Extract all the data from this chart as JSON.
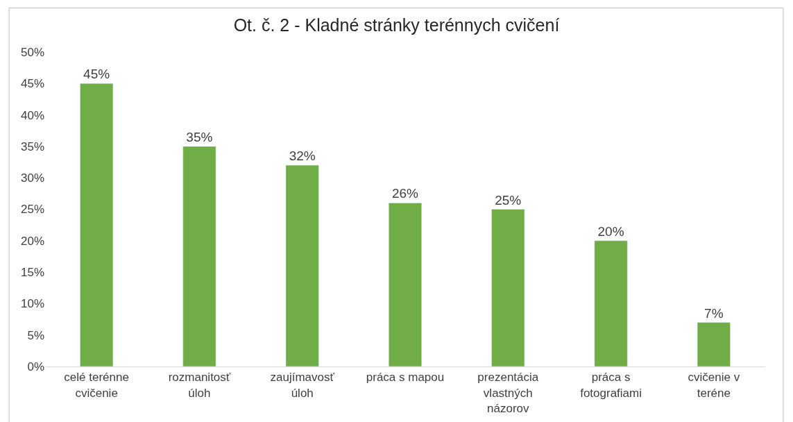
{
  "chart_data": {
    "type": "bar",
    "title": "Ot. č. 2 - Kladné stránky terénnych cvičení",
    "categories": [
      "celé terénne cvičenie",
      "rozmanitosť úloh",
      "zaujímavosť úloh",
      "práca s mapou",
      "prezentácia vlastných názorov",
      "práca s fotografiami",
      "cvičenie v teréne"
    ],
    "values": [
      45,
      35,
      32,
      26,
      25,
      20,
      7
    ],
    "value_labels": [
      "45%",
      "35%",
      "32%",
      "26%",
      "25%",
      "20%",
      "7%"
    ],
    "color": "#70ad47",
    "ylim": [
      0,
      50
    ],
    "yticks": [
      {
        "value": 0,
        "label": "0%"
      },
      {
        "value": 5,
        "label": "5%"
      },
      {
        "value": 10,
        "label": "10%"
      },
      {
        "value": 15,
        "label": "15%"
      },
      {
        "value": 20,
        "label": "20%"
      },
      {
        "value": 25,
        "label": "25%"
      },
      {
        "value": 30,
        "label": "30%"
      },
      {
        "value": 35,
        "label": "35%"
      },
      {
        "value": 40,
        "label": "40%"
      },
      {
        "value": 45,
        "label": "45%"
      },
      {
        "value": 50,
        "label": "50%"
      }
    ],
    "grid": false
  }
}
